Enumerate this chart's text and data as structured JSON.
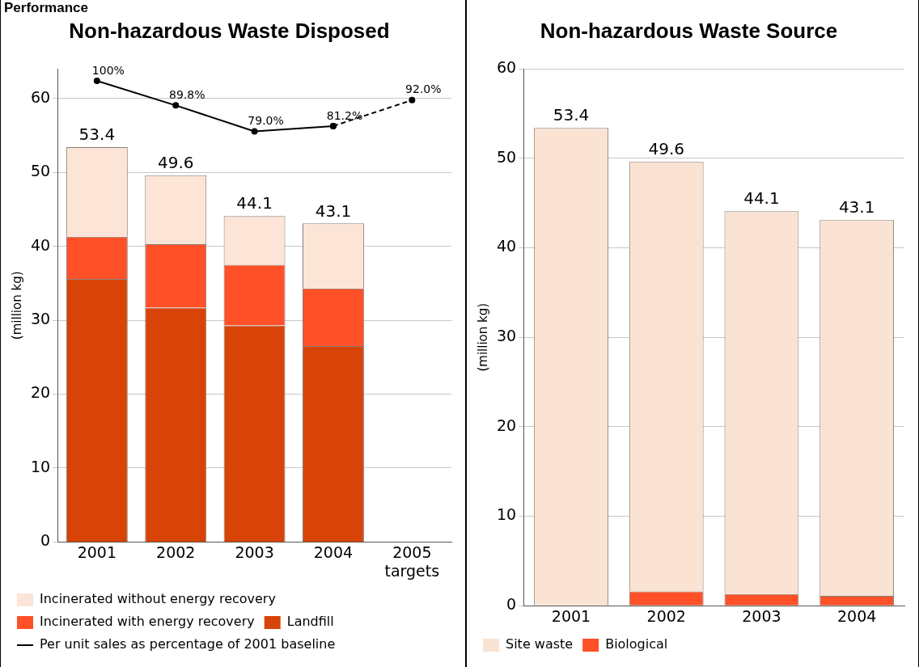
{
  "chart_data": [
    {
      "type": "bar",
      "title": "Non-hazardous Waste Disposed",
      "ylabel": "(million kg)",
      "annotations": [
        "Performance"
      ],
      "categories": [
        "2001",
        "2002",
        "2003",
        "2004",
        "2005 targets"
      ],
      "stacked": true,
      "ylim": [
        0,
        64
      ],
      "yticks": [
        0,
        10,
        20,
        30,
        40,
        50,
        60
      ],
      "y2lim": [
        -92,
        105
      ],
      "grid": "y",
      "legend": "bottom",
      "marker": "circle",
      "totals": [
        "53.4",
        "49.6",
        "44.1",
        "43.1",
        null
      ],
      "series": [
        {
          "name": "Landfill",
          "color": "#d84307",
          "values": [
            35.6,
            31.7,
            29.3,
            26.5,
            null
          ]
        },
        {
          "name": "Incinerated with energy recovery",
          "color": "#ff5028",
          "values": [
            5.7,
            8.6,
            8.2,
            7.8,
            null
          ]
        },
        {
          "name": "Incinerated without energy recovery",
          "color": "#fce5d6",
          "values": [
            12.1,
            9.3,
            6.6,
            8.8,
            null
          ]
        },
        {
          "name": "Per unit sales as percentage of 2001 baseline",
          "type": "line",
          "axis": "y2",
          "color": "#000000",
          "line_style": "solid",
          "values": [
            100,
            89.8,
            79.0,
            81.2,
            null
          ],
          "value_labels": [
            "100%",
            "89.8%",
            "79.0%",
            "81.2%",
            null
          ]
        },
        {
          "type": "line",
          "axis": "y2",
          "color": "#000000",
          "line_style": "dashed",
          "values": [
            null,
            null,
            null,
            81.2,
            92.0
          ],
          "value_labels": [
            null,
            null,
            null,
            null,
            "92.0%"
          ]
        }
      ]
    },
    {
      "type": "bar",
      "title": "Non-hazardous Waste Source",
      "ylabel": "(million kg)",
      "categories": [
        "2001",
        "2002",
        "2003",
        "2004"
      ],
      "stacked": true,
      "ylim": [
        0,
        60
      ],
      "yticks": [
        0,
        10,
        20,
        30,
        40,
        50,
        60
      ],
      "grid": "y",
      "legend": "bottom",
      "totals": [
        "53.4",
        "49.6",
        "44.1",
        "43.1"
      ],
      "series": [
        {
          "name": "Biological",
          "color": "#ff5028",
          "values": [
            0,
            1.6,
            1.3,
            1.1
          ]
        },
        {
          "name": "Site waste",
          "color": "#fae3d3",
          "values": [
            53.4,
            48.0,
            42.8,
            42.0
          ]
        }
      ]
    }
  ]
}
